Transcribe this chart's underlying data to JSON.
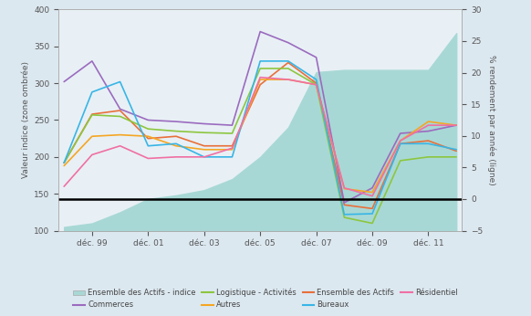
{
  "x_labels": [
    "déc. 99",
    "déc. 01",
    "déc. 03",
    "déc. 05",
    "déc. 07",
    "déc. 09",
    "déc. 11"
  ],
  "x_ticks": [
    1999,
    2001,
    2003,
    2005,
    2007,
    2009,
    2011
  ],
  "ylim_left": [
    100,
    400
  ],
  "ylim_right": [
    -5,
    30
  ],
  "yticks_left": [
    100,
    150,
    200,
    250,
    300,
    350,
    400
  ],
  "yticks_right": [
    -5,
    0,
    5,
    10,
    15,
    20,
    25,
    30
  ],
  "ylabel_left": "Valeur indice (zone ombrée)",
  "ylabel_right": "% rendement par année (ligne)",
  "hline_y": 143,
  "fill_color": "#a8d8d5",
  "fill_data_x": [
    1998,
    1999,
    2000,
    2001,
    2002,
    2003,
    2004,
    2005,
    2006,
    2007,
    2008,
    2009,
    2010,
    2011,
    2012
  ],
  "fill_data_y": [
    105,
    110,
    125,
    143,
    148,
    155,
    170,
    200,
    240,
    315,
    318,
    318,
    318,
    318,
    368
  ],
  "ensemble_actifs": {
    "x": [
      1998,
      1999,
      2000,
      2001,
      2002,
      2003,
      2004,
      2005,
      2006,
      2007,
      2008,
      2009,
      2010,
      2011,
      2012
    ],
    "y": [
      192,
      258,
      263,
      225,
      228,
      215,
      215,
      298,
      328,
      300,
      135,
      130,
      218,
      222,
      208
    ],
    "color": "#e8703a",
    "label": "Ensemble des Actifs"
  },
  "commerces": {
    "x": [
      1998,
      1999,
      2000,
      2001,
      2002,
      2003,
      2004,
      2005,
      2006,
      2007,
      2008,
      2009,
      2010,
      2011,
      2012
    ],
    "y": [
      302,
      330,
      265,
      250,
      248,
      245,
      243,
      370,
      355,
      335,
      138,
      158,
      232,
      235,
      243
    ],
    "color": "#9b6bbf",
    "label": "Commerces"
  },
  "logistique": {
    "x": [
      1998,
      1999,
      2000,
      2001,
      2002,
      2003,
      2004,
      2005,
      2006,
      2007,
      2008,
      2009,
      2010,
      2011,
      2012
    ],
    "y": [
      192,
      257,
      255,
      238,
      235,
      233,
      232,
      320,
      320,
      298,
      118,
      110,
      195,
      200,
      200
    ],
    "color": "#8dc63f",
    "label": "Logistique - Activités"
  },
  "autres": {
    "x": [
      1998,
      1999,
      2000,
      2001,
      2002,
      2003,
      2004,
      2005,
      2006,
      2007,
      2008,
      2009,
      2010,
      2011,
      2012
    ],
    "y": [
      188,
      228,
      230,
      228,
      215,
      210,
      210,
      305,
      305,
      298,
      157,
      152,
      222,
      248,
      243
    ],
    "color": "#f5a623",
    "label": "Autres"
  },
  "bureaux": {
    "x": [
      1998,
      1999,
      2000,
      2001,
      2002,
      2003,
      2004,
      2005,
      2006,
      2007,
      2008,
      2009,
      2010,
      2011,
      2012
    ],
    "y": [
      192,
      288,
      302,
      215,
      218,
      200,
      200,
      330,
      330,
      305,
      122,
      123,
      218,
      218,
      210
    ],
    "color": "#38b5e6",
    "label": "Bureaux"
  },
  "residentiel": {
    "x": [
      1998,
      1999,
      2000,
      2001,
      2002,
      2003,
      2004,
      2005,
      2006,
      2007,
      2008,
      2009,
      2010,
      2011,
      2012
    ],
    "y": [
      160,
      203,
      215,
      198,
      200,
      200,
      212,
      308,
      305,
      298,
      158,
      147,
      222,
      243,
      243
    ],
    "color": "#f06fa4",
    "label": "Résidentiel"
  },
  "background_color": "#dce8f0",
  "plot_bg_color": "#e8f0f5"
}
